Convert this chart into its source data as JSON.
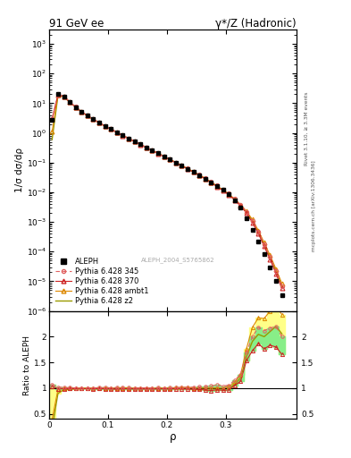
{
  "title_left": "91 GeV ee",
  "title_right": "γ*/Z (Hadronic)",
  "ylabel_main": "1/σ dσ/dρ",
  "ylabel_ratio": "Ratio to ALEPH",
  "xlabel": "ρ",
  "right_label_top": "Rivet 3.1.10, ≥ 3.3M events",
  "right_label_bottom": "mcplots.cern.ch [arXiv:1306.3436]",
  "watermark": "ALEPH_2004_S5765862",
  "ylim_main": [
    1e-06,
    3000
  ],
  "ylim_ratio": [
    0.4,
    2.5
  ],
  "xlim": [
    0.0,
    0.42
  ],
  "legend_entries": [
    "ALEPH",
    "Pythia 6.428 345",
    "Pythia 6.428 370",
    "Pythia 6.428 ambt1",
    "Pythia 6.428 z2"
  ],
  "aleph_x": [
    0.005,
    0.015,
    0.025,
    0.035,
    0.045,
    0.055,
    0.065,
    0.075,
    0.085,
    0.095,
    0.105,
    0.115,
    0.125,
    0.135,
    0.145,
    0.155,
    0.165,
    0.175,
    0.185,
    0.195,
    0.205,
    0.215,
    0.225,
    0.235,
    0.245,
    0.255,
    0.265,
    0.275,
    0.285,
    0.295,
    0.305,
    0.315,
    0.325,
    0.335,
    0.345,
    0.355,
    0.365,
    0.375,
    0.385,
    0.395
  ],
  "aleph_y": [
    2.8,
    20.0,
    17.0,
    11.0,
    7.5,
    5.2,
    3.8,
    2.9,
    2.2,
    1.7,
    1.35,
    1.05,
    0.82,
    0.65,
    0.52,
    0.41,
    0.325,
    0.26,
    0.205,
    0.162,
    0.128,
    0.1,
    0.079,
    0.062,
    0.049,
    0.038,
    0.029,
    0.022,
    0.016,
    0.012,
    0.0085,
    0.0052,
    0.003,
    0.0013,
    0.00055,
    0.00022,
    8.5e-05,
    3e-05,
    1e-05,
    3.5e-06
  ],
  "aleph_err_rel": [
    0.15,
    0.03,
    0.02,
    0.02,
    0.02,
    0.02,
    0.02,
    0.02,
    0.02,
    0.02,
    0.02,
    0.02,
    0.02,
    0.02,
    0.02,
    0.02,
    0.02,
    0.02,
    0.02,
    0.02,
    0.02,
    0.02,
    0.02,
    0.02,
    0.02,
    0.02,
    0.02,
    0.02,
    0.03,
    0.03,
    0.04,
    0.05,
    0.07,
    0.1,
    0.15,
    0.2,
    0.3,
    0.4,
    0.55,
    0.7
  ],
  "mc_x": [
    0.005,
    0.015,
    0.025,
    0.035,
    0.045,
    0.055,
    0.065,
    0.075,
    0.085,
    0.095,
    0.105,
    0.115,
    0.125,
    0.135,
    0.145,
    0.155,
    0.165,
    0.175,
    0.185,
    0.195,
    0.205,
    0.215,
    0.225,
    0.235,
    0.245,
    0.255,
    0.265,
    0.275,
    0.285,
    0.295,
    0.305,
    0.315,
    0.325,
    0.335,
    0.345,
    0.355,
    0.365,
    0.375,
    0.385,
    0.395
  ],
  "p345_y": [
    3.0,
    20.5,
    17.2,
    11.1,
    7.55,
    5.22,
    3.82,
    2.92,
    2.22,
    1.72,
    1.36,
    1.06,
    0.83,
    0.655,
    0.522,
    0.412,
    0.327,
    0.261,
    0.207,
    0.163,
    0.129,
    0.101,
    0.08,
    0.063,
    0.05,
    0.039,
    0.03,
    0.023,
    0.017,
    0.0125,
    0.009,
    0.006,
    0.0038,
    0.0022,
    0.0011,
    0.00048,
    0.00018,
    6.5e-05,
    2.2e-05,
    7e-06
  ],
  "p370_y": [
    2.9,
    19.8,
    16.8,
    10.9,
    7.45,
    5.15,
    3.77,
    2.87,
    2.18,
    1.68,
    1.33,
    1.03,
    0.81,
    0.642,
    0.512,
    0.404,
    0.32,
    0.256,
    0.202,
    0.16,
    0.126,
    0.099,
    0.078,
    0.061,
    0.048,
    0.037,
    0.028,
    0.021,
    0.0155,
    0.0115,
    0.0082,
    0.0055,
    0.0034,
    0.002,
    0.00095,
    0.00041,
    0.00015,
    5.5e-05,
    1.8e-05,
    5.8e-06
  ],
  "pambt1_y": [
    1.1,
    19.5,
    17.0,
    11.0,
    7.5,
    5.2,
    3.8,
    2.9,
    2.2,
    1.7,
    1.35,
    1.05,
    0.825,
    0.652,
    0.52,
    0.41,
    0.325,
    0.259,
    0.205,
    0.162,
    0.128,
    0.101,
    0.08,
    0.063,
    0.049,
    0.038,
    0.029,
    0.022,
    0.016,
    0.012,
    0.0088,
    0.0058,
    0.0038,
    0.0023,
    0.0012,
    0.00052,
    0.0002,
    7.5e-05,
    2.6e-05,
    8.5e-06
  ],
  "pz2_y": [
    0.6,
    18.0,
    16.5,
    10.8,
    7.4,
    5.15,
    3.77,
    2.87,
    2.18,
    1.69,
    1.34,
    1.04,
    0.82,
    0.648,
    0.516,
    0.408,
    0.323,
    0.258,
    0.204,
    0.161,
    0.127,
    0.1,
    0.079,
    0.062,
    0.048,
    0.038,
    0.029,
    0.022,
    0.016,
    0.0118,
    0.0085,
    0.0056,
    0.0036,
    0.0021,
    0.00105,
    0.00045,
    0.00017,
    6.3e-05,
    2.2e-05,
    7.2e-06
  ],
  "color_345": "#e06060",
  "color_370": "#cc2222",
  "color_ambt1": "#dd8800",
  "color_z2": "#999900",
  "band_yellow": "#ffff88",
  "band_green": "#88ee88",
  "bg_color": "#ffffff"
}
